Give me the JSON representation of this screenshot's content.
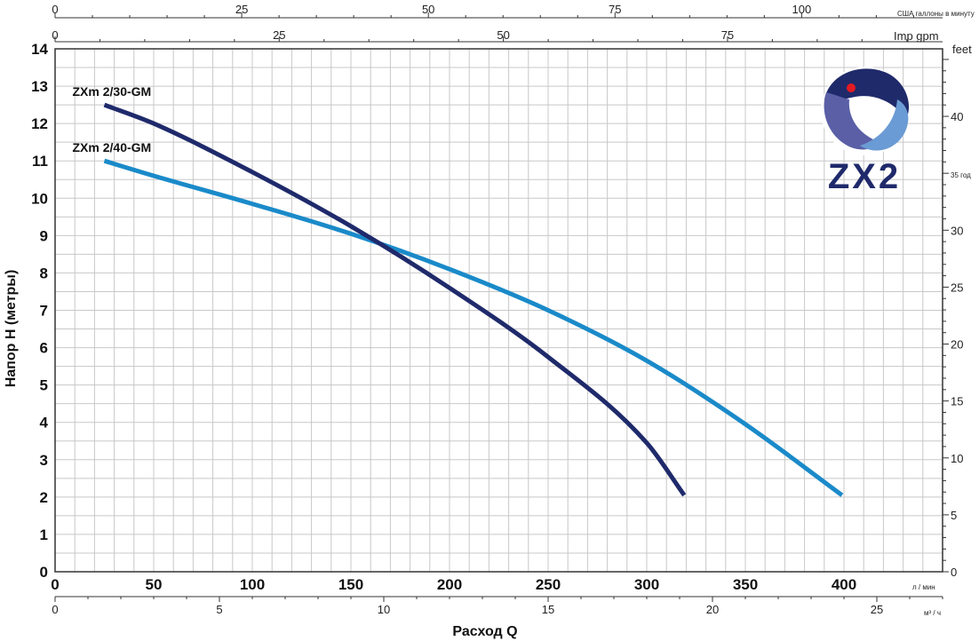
{
  "chart_data": {
    "type": "line",
    "ylabel": "Напор H (метры)",
    "xlabel": "Расход Q",
    "x_unit": "л / мин",
    "x2_unit": "м³ / ч",
    "top1_unit": "США галлоны в минуту",
    "top2_unit": "Imp gpm",
    "right_unit": "feet",
    "right_small_label": "35 год",
    "xlim": [
      0,
      450
    ],
    "ylim": [
      0,
      14
    ],
    "grid": true,
    "x_ticks": [
      0,
      50,
      100,
      150,
      200,
      250,
      300,
      350,
      400
    ],
    "y_ticks": [
      0,
      1,
      2,
      3,
      4,
      5,
      6,
      7,
      8,
      9,
      10,
      11,
      12,
      13,
      14
    ],
    "x2_ticks": [
      0,
      5,
      10,
      15,
      20,
      25
    ],
    "top1_ticks": [
      0,
      25,
      50,
      75,
      100
    ],
    "top2_ticks": [
      0,
      25,
      50,
      75
    ],
    "right_ticks": [
      0,
      5,
      10,
      15,
      20,
      25,
      30,
      35,
      40
    ],
    "series": [
      {
        "name": "ZXm 2/30-GM",
        "color": "#1f2a6b",
        "x": [
          25,
          50,
          100,
          150,
          200,
          250,
          300,
          319
        ],
        "y": [
          12.5,
          12.0,
          10.7,
          9.25,
          7.6,
          5.75,
          3.45,
          2.05
        ]
      },
      {
        "name": "ZXm 2/40-GM",
        "color": "#1a8ac9",
        "x": [
          25,
          50,
          100,
          150,
          200,
          250,
          300,
          350,
          399
        ],
        "y": [
          11.0,
          10.6,
          9.85,
          9.05,
          8.1,
          7.0,
          5.65,
          3.95,
          2.05
        ]
      }
    ]
  },
  "logo": {
    "text": "ZX2",
    "colors": {
      "dark": "#1f2a6b",
      "mid": "#5a5fa6",
      "light": "#6b9bd4",
      "dot": "#e31b23"
    }
  }
}
